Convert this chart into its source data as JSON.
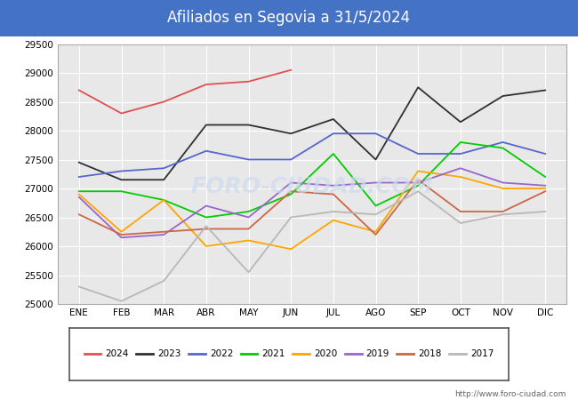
{
  "title": "Afiliados en Segovia a 31/5/2024",
  "title_bg_color": "#4472c4",
  "title_text_color": "#ffffff",
  "xlabels": [
    "ENE",
    "FEB",
    "MAR",
    "ABR",
    "MAY",
    "JUN",
    "JUL",
    "AGO",
    "SEP",
    "OCT",
    "NOV",
    "DIC"
  ],
  "ylim": [
    25000,
    29500
  ],
  "yticks": [
    25000,
    25500,
    26000,
    26500,
    27000,
    27500,
    28000,
    28500,
    29000,
    29500
  ],
  "plot_bg_color": "#e8e8e8",
  "grid_color": "#ffffff",
  "watermark": "http://www.foro-ciudad.com",
  "series": [
    {
      "label": "2024",
      "color": "#e05050",
      "data": [
        28700,
        28300,
        28500,
        28800,
        28850,
        29050,
        null,
        null,
        null,
        null,
        null,
        null
      ]
    },
    {
      "label": "2023",
      "color": "#303030",
      "data": [
        27450,
        27150,
        27150,
        28100,
        28100,
        27950,
        28200,
        27500,
        28750,
        28150,
        28600,
        28700
      ]
    },
    {
      "label": "2022",
      "color": "#5566cc",
      "data": [
        27200,
        27300,
        27350,
        27650,
        27500,
        27500,
        27950,
        27950,
        27600,
        27600,
        27800,
        27600
      ]
    },
    {
      "label": "2021",
      "color": "#00cc00",
      "data": [
        26950,
        26950,
        26800,
        26500,
        26600,
        26900,
        27600,
        26700,
        27050,
        27800,
        27700,
        27200
      ]
    },
    {
      "label": "2020",
      "color": "#ffa500",
      "data": [
        26900,
        26250,
        26800,
        26000,
        26100,
        25950,
        26450,
        26250,
        27300,
        27200,
        27000,
        27000
      ]
    },
    {
      "label": "2019",
      "color": "#9966cc",
      "data": [
        26850,
        26150,
        26200,
        26700,
        26500,
        27100,
        27050,
        27100,
        27100,
        27350,
        27100,
        27050
      ]
    },
    {
      "label": "2018",
      "color": "#cc6644",
      "data": [
        26550,
        26200,
        26250,
        26300,
        26300,
        26950,
        26900,
        26200,
        27150,
        26600,
        26600,
        26950
      ]
    },
    {
      "label": "2017",
      "color": "#b8b8b8",
      "data": [
        25300,
        25050,
        25400,
        26350,
        25550,
        26500,
        26600,
        26550,
        26950,
        26400,
        26550,
        26600
      ]
    }
  ]
}
